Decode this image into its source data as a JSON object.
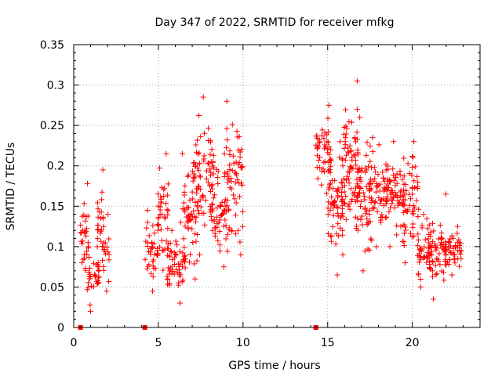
{
  "chart_data": {
    "type": "scatter",
    "title": "Day 347 of 2022, SRMTID for receiver mfkg",
    "xlabel": "GPS time / hours",
    "ylabel": "SRMTID / TECUs",
    "xlim": [
      0,
      24
    ],
    "ylim": [
      0,
      0.35
    ],
    "x_ticks": [
      0,
      5,
      10,
      15,
      20
    ],
    "x_tick_labels": [
      "0",
      "5",
      "10",
      "15",
      "20"
    ],
    "y_ticks": [
      0,
      0.05,
      0.1,
      0.15,
      0.2,
      0.25,
      0.3,
      0.35
    ],
    "y_tick_labels": [
      "0",
      "0.05",
      "0.1",
      "0.15",
      "0.2",
      "0.25",
      "0.3",
      "0.35"
    ],
    "grid": true,
    "marker": "+",
    "series_color": "#ff0000",
    "zero_markers_x": [
      0.4,
      4.2,
      14.3
    ],
    "series": [
      {
        "name": "SRMTID",
        "clusters": [
          {
            "x_start": 0.4,
            "x_end": 0.9,
            "y_min": 0.05,
            "y_max": 0.178,
            "count": 30
          },
          {
            "x_start": 0.8,
            "x_end": 1.5,
            "y_min": 0.02,
            "y_max": 0.1,
            "count": 30
          },
          {
            "x_start": 1.4,
            "x_end": 1.8,
            "y_min": 0.08,
            "y_max": 0.195,
            "count": 22
          },
          {
            "x_start": 1.7,
            "x_end": 2.1,
            "y_min": 0.045,
            "y_max": 0.14,
            "count": 14
          },
          {
            "x_start": 4.2,
            "x_end": 5.0,
            "y_min": 0.045,
            "y_max": 0.145,
            "count": 35
          },
          {
            "x_start": 4.9,
            "x_end": 5.6,
            "y_min": 0.06,
            "y_max": 0.215,
            "count": 40
          },
          {
            "x_start": 5.5,
            "x_end": 6.6,
            "y_min": 0.03,
            "y_max": 0.13,
            "count": 55
          },
          {
            "x_start": 6.4,
            "x_end": 7.4,
            "y_min": 0.06,
            "y_max": 0.215,
            "count": 50
          },
          {
            "x_start": 7.0,
            "x_end": 8.3,
            "y_min": 0.09,
            "y_max": 0.285,
            "count": 70
          },
          {
            "x_start": 8.0,
            "x_end": 9.2,
            "y_min": 0.075,
            "y_max": 0.215,
            "count": 60
          },
          {
            "x_start": 9.0,
            "x_end": 10.0,
            "y_min": 0.09,
            "y_max": 0.28,
            "count": 55
          },
          {
            "x_start": 14.3,
            "x_end": 15.2,
            "y_min": 0.14,
            "y_max": 0.275,
            "count": 50
          },
          {
            "x_start": 15.0,
            "x_end": 15.9,
            "y_min": 0.065,
            "y_max": 0.23,
            "count": 55
          },
          {
            "x_start": 15.8,
            "x_end": 16.8,
            "y_min": 0.09,
            "y_max": 0.305,
            "count": 70
          },
          {
            "x_start": 16.6,
            "x_end": 17.6,
            "y_min": 0.07,
            "y_max": 0.26,
            "count": 65
          },
          {
            "x_start": 17.4,
            "x_end": 18.6,
            "y_min": 0.1,
            "y_max": 0.235,
            "count": 65
          },
          {
            "x_start": 18.4,
            "x_end": 19.6,
            "y_min": 0.1,
            "y_max": 0.23,
            "count": 60
          },
          {
            "x_start": 19.4,
            "x_end": 20.4,
            "y_min": 0.08,
            "y_max": 0.23,
            "count": 55
          },
          {
            "x_start": 20.3,
            "x_end": 21.1,
            "y_min": 0.05,
            "y_max": 0.14,
            "count": 45
          },
          {
            "x_start": 21.0,
            "x_end": 22.0,
            "y_min": 0.035,
            "y_max": 0.165,
            "count": 55
          },
          {
            "x_start": 21.9,
            "x_end": 22.9,
            "y_min": 0.065,
            "y_max": 0.125,
            "count": 45
          }
        ]
      }
    ]
  }
}
